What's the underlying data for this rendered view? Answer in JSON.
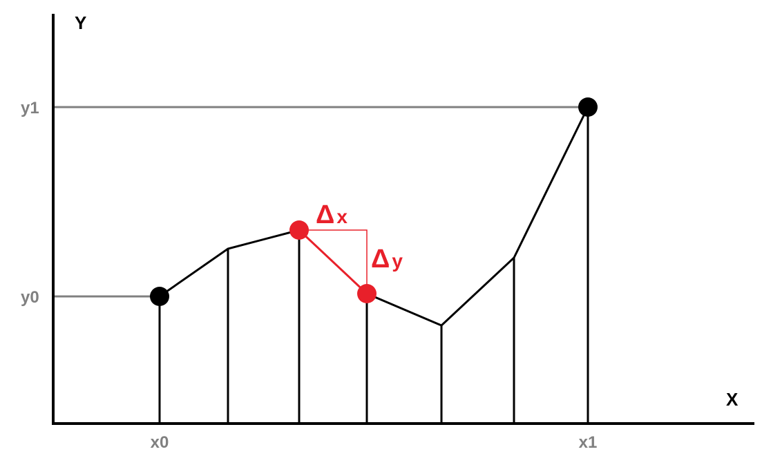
{
  "axes": {
    "x_title": "X",
    "y_title": "Y"
  },
  "labels": {
    "x0": "x0",
    "x1": "x1",
    "y0": "y0",
    "y1": "y1"
  },
  "deltas": {
    "symbol": "Δ",
    "x_var": "x",
    "y_var": "y"
  },
  "colors": {
    "axis": "#000000",
    "curve": "#000000",
    "guide_line": "#808080",
    "label": "#808080",
    "highlight": "#e8202a",
    "point": "#000000"
  }
}
